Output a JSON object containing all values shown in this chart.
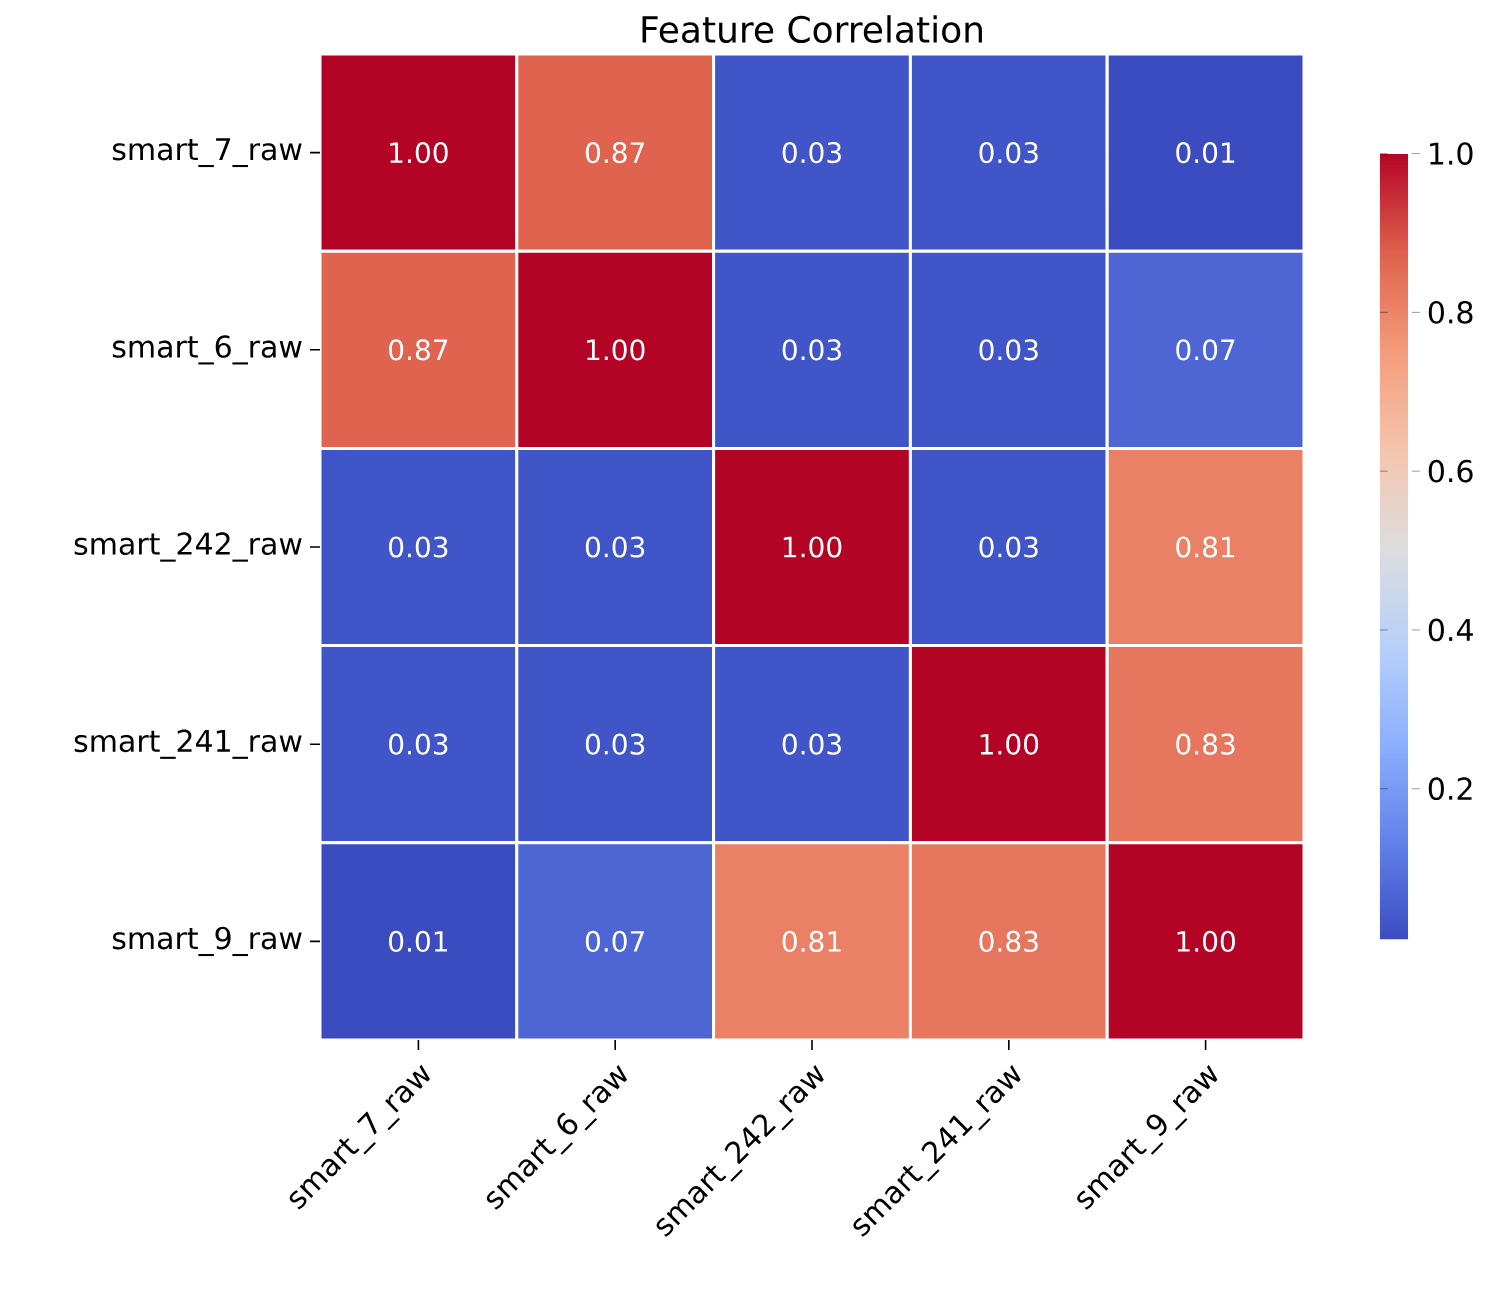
{
  "chart_data": {
    "type": "heatmap",
    "title": "Feature Correlation",
    "categories": [
      "smart_7_raw",
      "smart_6_raw",
      "smart_242_raw",
      "smart_241_raw",
      "smart_9_raw"
    ],
    "y_categories": [
      "smart_7_raw",
      "smart_6_raw",
      "smart_242_raw",
      "smart_241_raw",
      "smart_9_raw"
    ],
    "cells": [
      [
        1.0,
        0.87,
        0.03,
        0.03,
        0.01
      ],
      [
        0.87,
        1.0,
        0.03,
        0.03,
        0.07
      ],
      [
        0.03,
        0.03,
        1.0,
        0.03,
        0.81
      ],
      [
        0.03,
        0.03,
        0.03,
        1.0,
        0.83
      ],
      [
        0.01,
        0.07,
        0.81,
        0.83,
        1.0
      ]
    ],
    "cell_labels": [
      [
        "1.00",
        "0.87",
        "0.03",
        "0.03",
        "0.01"
      ],
      [
        "0.87",
        "1.00",
        "0.03",
        "0.03",
        "0.07"
      ],
      [
        "0.03",
        "0.03",
        "1.00",
        "0.03",
        "0.81"
      ],
      [
        "0.03",
        "0.03",
        "0.03",
        "1.00",
        "0.83"
      ],
      [
        "0.01",
        "0.07",
        "0.81",
        "0.83",
        "1.00"
      ]
    ],
    "clim": [
      0.01,
      1.0
    ],
    "cticks": [
      0.2,
      0.4,
      0.6,
      0.8,
      {
        "value": 1.0,
        "label": "1.0"
      }
    ]
  }
}
